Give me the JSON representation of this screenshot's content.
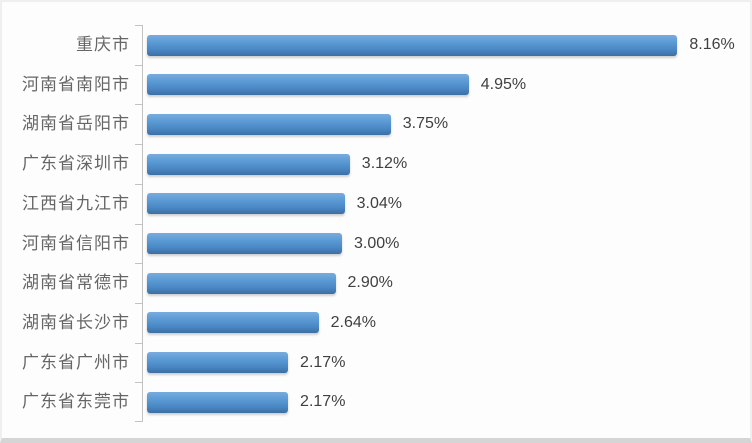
{
  "chart_data": {
    "type": "bar",
    "orientation": "horizontal",
    "grid": false,
    "legend_position": "none",
    "categories": [
      "重庆市",
      "河南省南阳市",
      "湖南省岳阳市",
      "广东省深圳市",
      "江西省九江市",
      "河南省信阳市",
      "湖南省常德市",
      "湖南省长沙市",
      "广东省广州市",
      "广东省东莞市"
    ],
    "values": [
      8.16,
      4.95,
      3.75,
      3.12,
      3.04,
      3.0,
      2.9,
      2.64,
      2.17,
      2.17
    ],
    "value_labels": [
      "8.16%",
      "4.95%",
      "3.75%",
      "3.12%",
      "3.04%",
      "3.00%",
      "2.90%",
      "2.64%",
      "2.17%",
      "2.17%"
    ]
  },
  "colors": {
    "bar_fill": "#5B9BD5",
    "bar_gradient_top": "#79ABDE",
    "bar_gradient_bottom": "#3C6FA4",
    "axis_line": "#C2C2C2",
    "category_text": "#666666",
    "value_text": "#404040",
    "background": "#FDFDFD",
    "border": "#EFEFEF",
    "bottom_shadow": "#D5D5D5"
  }
}
